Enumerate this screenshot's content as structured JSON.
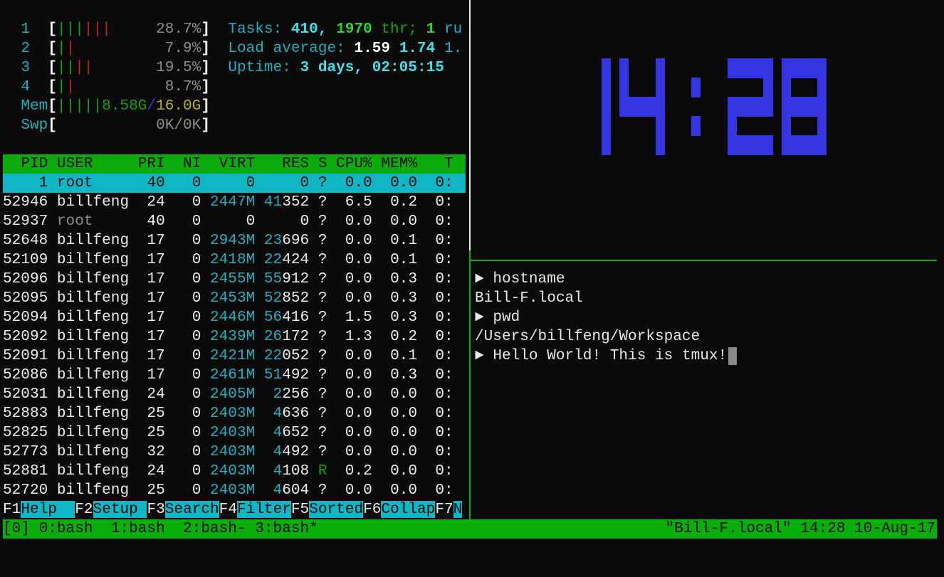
{
  "colors": {
    "background": "#0a0a0a",
    "header_green": "#0aab0a",
    "selection_cyan": "#10b6c6",
    "clock_blue": "#3535e2",
    "status_green": "#0aae0a",
    "active_border": "#0aab0a"
  },
  "meters": {
    "cpus": [
      {
        "label": "1",
        "green_bars": 3,
        "red_bars": 3,
        "value": "28.7%"
      },
      {
        "label": "2",
        "green_bars": 1,
        "red_bars": 1,
        "value": "7.9%"
      },
      {
        "label": "3",
        "green_bars": 2,
        "red_bars": 2,
        "value": "19.5%"
      },
      {
        "label": "4",
        "green_bars": 1,
        "red_bars": 1,
        "value": "8.7%"
      }
    ],
    "mem": {
      "label": "Mem",
      "bars": 5,
      "used": "8.58G",
      "sep": "/",
      "total": "16.0G"
    },
    "swp": {
      "label": "Swp",
      "value": "0K/0K"
    }
  },
  "summary": {
    "tasks": {
      "label": "Tasks:",
      "count": "410,",
      "threads": "1970",
      "threads_label": "thr;",
      "running": "1",
      "running_label": "ru"
    },
    "load": {
      "label": "Load average:",
      "v1": "1.59",
      "v2": "1.74",
      "v3": "1."
    },
    "uptime": {
      "label": "Uptime:",
      "value": "3 days, 02:05:15"
    }
  },
  "table": {
    "columns": [
      "PID",
      "USER",
      "PRI",
      "NI",
      "VIRT",
      "RES",
      "S",
      "CPU%",
      "MEM%",
      "T"
    ],
    "selected_index": 0,
    "rows": [
      [
        "1",
        "root",
        "40",
        "0",
        "0",
        "0",
        "?",
        "0.0",
        "0.0",
        "0:"
      ],
      [
        "52946",
        "billfeng",
        "24",
        "0",
        "2447M",
        "41352",
        "?",
        "6.5",
        "0.2",
        "0:"
      ],
      [
        "52937",
        "root",
        "40",
        "0",
        "0",
        "0",
        "?",
        "0.0",
        "0.0",
        "0:"
      ],
      [
        "52648",
        "billfeng",
        "17",
        "0",
        "2943M",
        "23696",
        "?",
        "0.0",
        "0.1",
        "0:"
      ],
      [
        "52109",
        "billfeng",
        "17",
        "0",
        "2418M",
        "22424",
        "?",
        "0.0",
        "0.1",
        "0:"
      ],
      [
        "52096",
        "billfeng",
        "17",
        "0",
        "2455M",
        "55912",
        "?",
        "0.0",
        "0.3",
        "0:"
      ],
      [
        "52095",
        "billfeng",
        "17",
        "0",
        "2453M",
        "52852",
        "?",
        "0.0",
        "0.3",
        "0:"
      ],
      [
        "52094",
        "billfeng",
        "17",
        "0",
        "2446M",
        "56416",
        "?",
        "1.5",
        "0.3",
        "0:"
      ],
      [
        "52092",
        "billfeng",
        "17",
        "0",
        "2439M",
        "26172",
        "?",
        "1.3",
        "0.2",
        "0:"
      ],
      [
        "52091",
        "billfeng",
        "17",
        "0",
        "2421M",
        "22052",
        "?",
        "0.0",
        "0.1",
        "0:"
      ],
      [
        "52086",
        "billfeng",
        "17",
        "0",
        "2461M",
        "51492",
        "?",
        "0.0",
        "0.3",
        "0:"
      ],
      [
        "52031",
        "billfeng",
        "24",
        "0",
        "2405M",
        "2256",
        "?",
        "0.0",
        "0.0",
        "0:"
      ],
      [
        "52883",
        "billfeng",
        "25",
        "0",
        "2403M",
        "4636",
        "?",
        "0.0",
        "0.0",
        "0:"
      ],
      [
        "52825",
        "billfeng",
        "25",
        "0",
        "2403M",
        "4652",
        "?",
        "0.0",
        "0.0",
        "0:"
      ],
      [
        "52773",
        "billfeng",
        "32",
        "0",
        "2403M",
        "4492",
        "?",
        "0.0",
        "0.0",
        "0:"
      ],
      [
        "52881",
        "billfeng",
        "24",
        "0",
        "2403M",
        "4108",
        "R",
        "0.2",
        "0.0",
        "0:"
      ],
      [
        "52720",
        "billfeng",
        "25",
        "0",
        "2403M",
        "4604",
        "?",
        "0.0",
        "0.0",
        "0:"
      ]
    ]
  },
  "fkeys": [
    {
      "key": "F1",
      "label": "Help"
    },
    {
      "key": "F2",
      "label": "Setup"
    },
    {
      "key": "F3",
      "label": "Search"
    },
    {
      "key": "F4",
      "label": "Filter"
    },
    {
      "key": "F5",
      "label": "Sorted"
    },
    {
      "key": "F6",
      "label": "Collap"
    },
    {
      "key": "F7",
      "label": "N"
    }
  ],
  "clock": {
    "time": "14:28"
  },
  "shell": {
    "prompt_icon": "triangle-right-icon",
    "prompt_symbol": "►",
    "lines": [
      {
        "type": "command",
        "text": "hostname"
      },
      {
        "type": "output",
        "text": "Bill-F.local"
      },
      {
        "type": "command",
        "text": "pwd"
      },
      {
        "type": "output",
        "text": "/Users/billfeng/Workspace"
      },
      {
        "type": "command",
        "text": "Hello World! This is tmux!"
      }
    ]
  },
  "status": {
    "session": "[0]",
    "windows": [
      "0:bash",
      "1:bash",
      "2:bash-",
      "3:bash*"
    ],
    "right": "\"Bill-F.local\" 14:28 10-Aug-17"
  }
}
